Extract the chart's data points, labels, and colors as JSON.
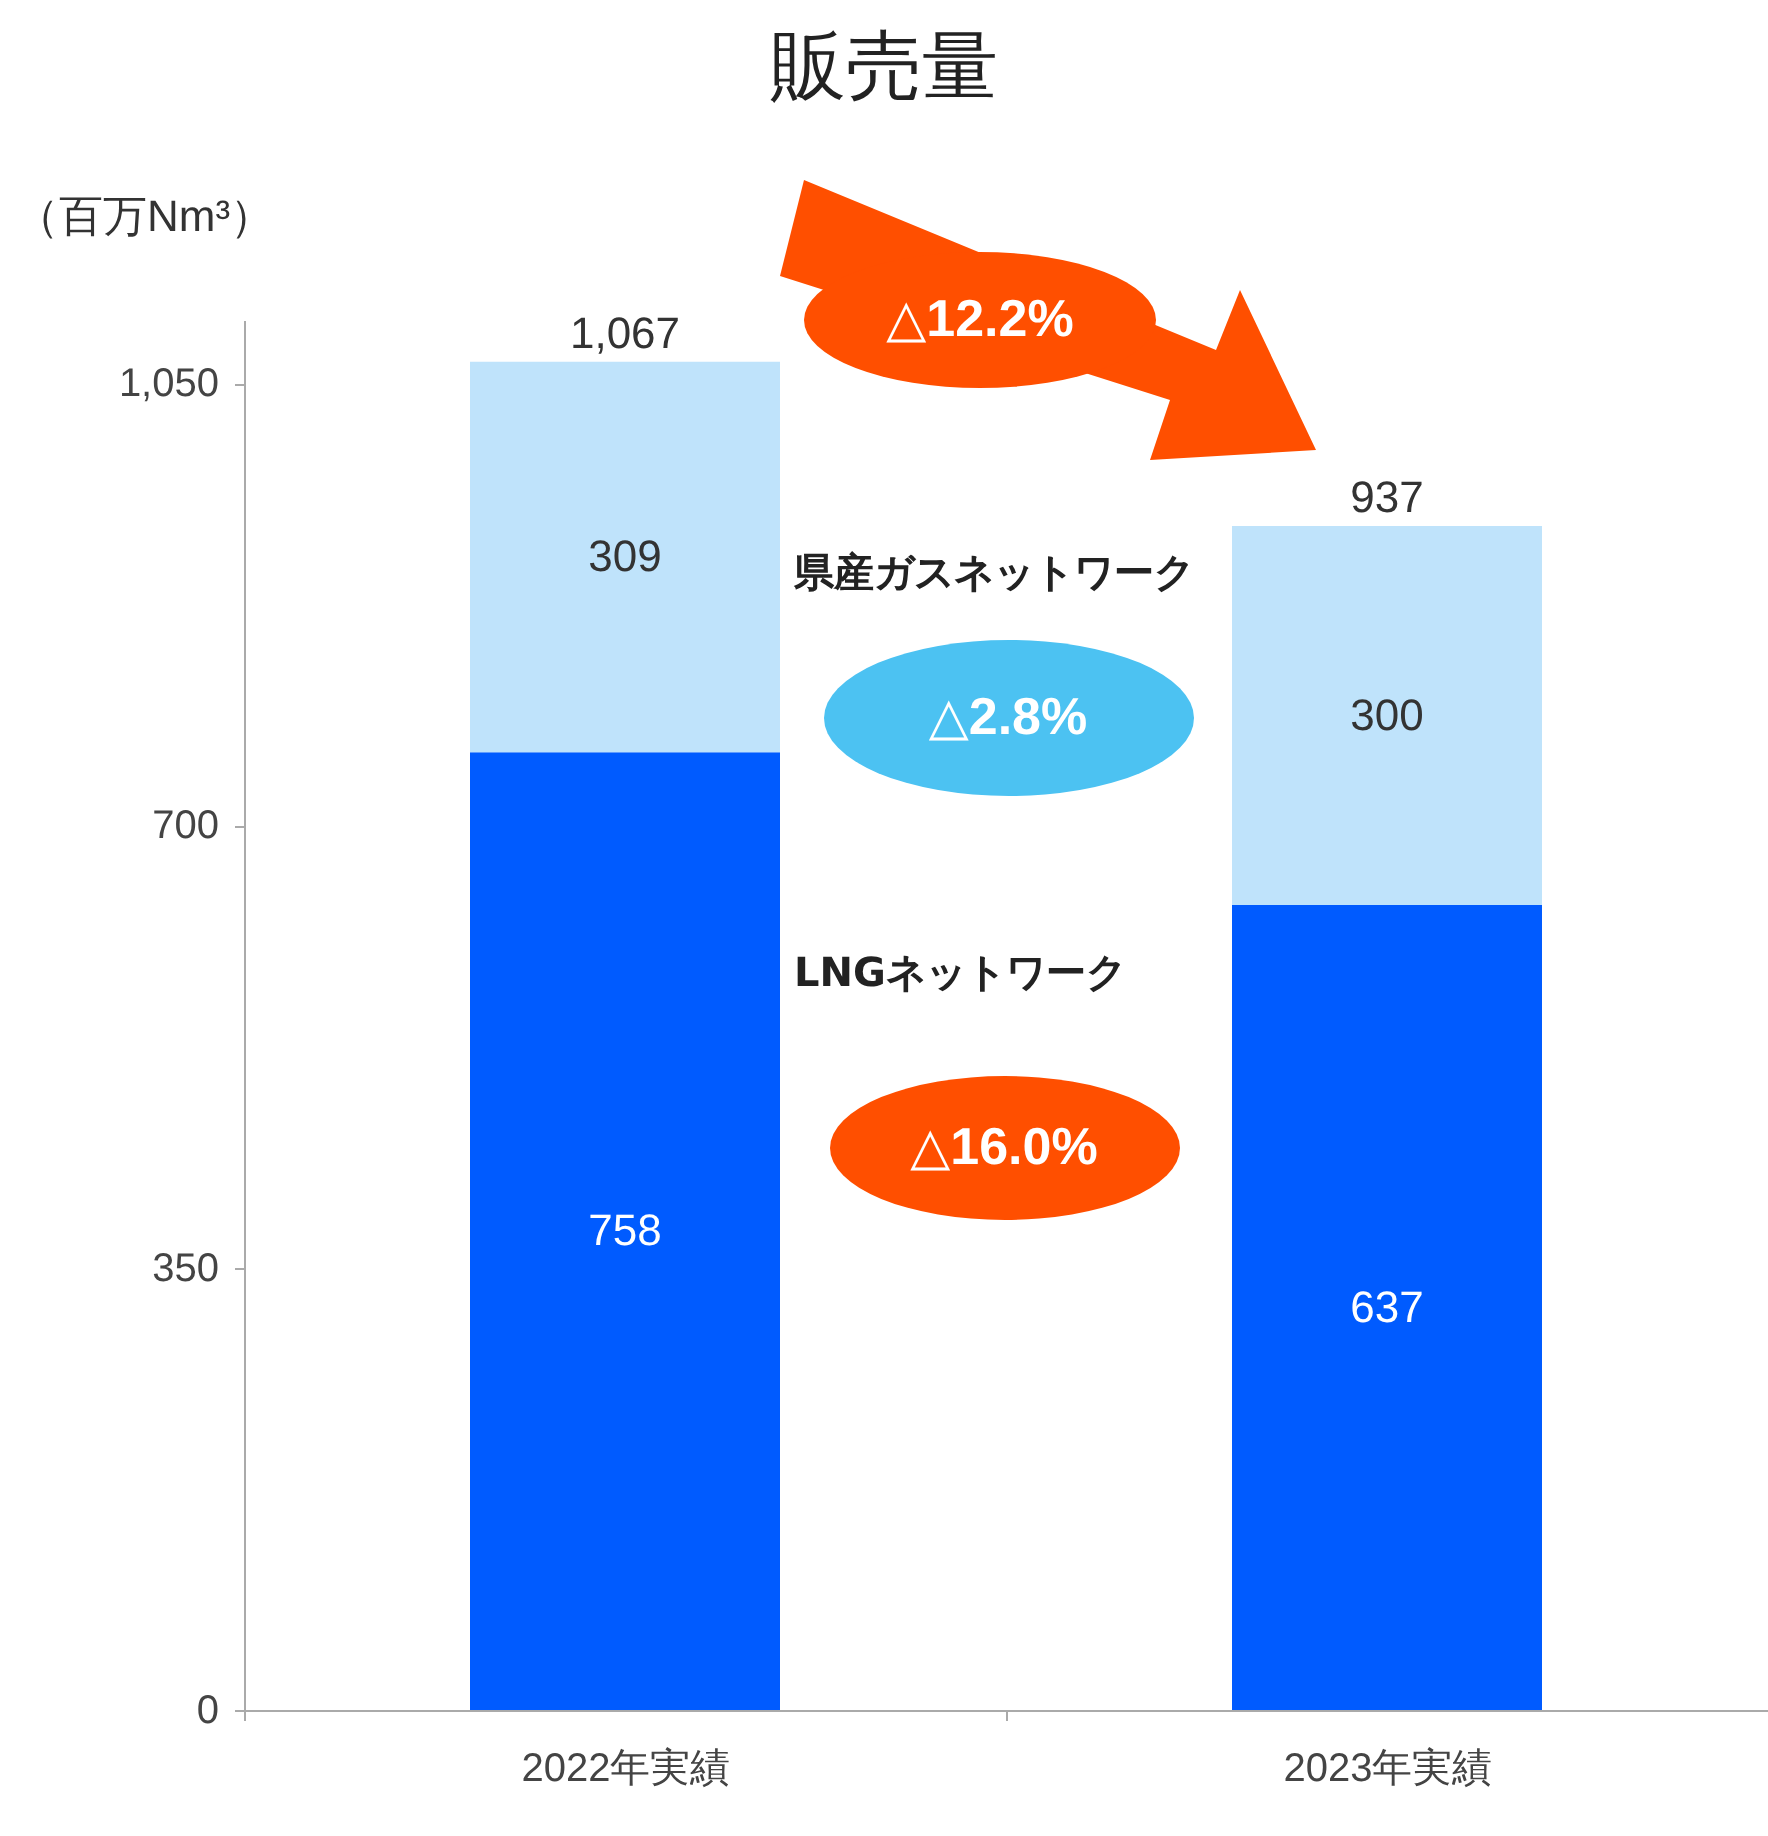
{
  "chart_data": {
    "type": "bar",
    "title": "販売量",
    "ylabel": "（百万Nm³）",
    "categories": [
      "2022年実績",
      "2023年実績"
    ],
    "series": [
      {
        "name": "LNGネットワーク",
        "color": "#005bff",
        "values": [
          758,
          637
        ]
      },
      {
        "name": "県産ガスネットワーク",
        "color": "#bfe3fb",
        "values": [
          309,
          300
        ]
      }
    ],
    "stacked": true,
    "data_labels": true,
    "totals": [
      "1,067",
      "937"
    ],
    "ylim": [
      0,
      1100
    ],
    "yticks": [
      0,
      350,
      700,
      {
        "value": 1050,
        "label": "1,050"
      }
    ],
    "annotations": [
      "△12.2%",
      "△2.8%",
      "△16.0%"
    ]
  }
}
